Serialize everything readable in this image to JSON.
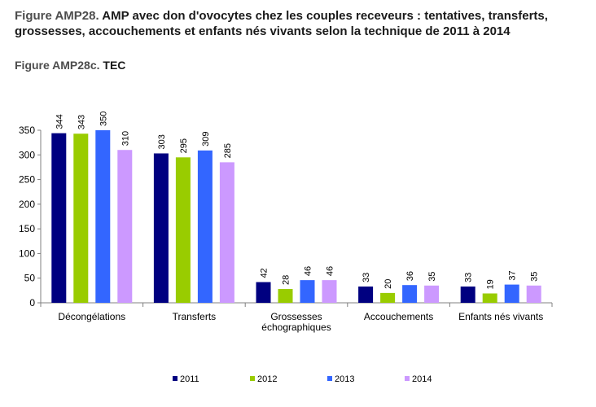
{
  "header": {
    "title_prefix": "Figure AMP28.",
    "title_text": "AMP avec don d'ovocytes chez les couples receveurs : tentatives, transferts, grossesses, accouchements et enfants nés vivants selon la technique de 2011 à 2014",
    "subtitle_prefix": "Figure AMP28c.",
    "subtitle_text": "TEC"
  },
  "chart_data": {
    "type": "bar",
    "title": "",
    "xlabel": "",
    "ylabel": "",
    "ylim": [
      0,
      350
    ],
    "yticks": [
      0,
      50,
      100,
      150,
      200,
      250,
      300,
      350
    ],
    "grid": false,
    "legend_position": "bottom",
    "categories": [
      [
        "Décongélations"
      ],
      [
        "Transferts"
      ],
      [
        "Grossesses",
        "échographiques"
      ],
      [
        "Accouchements"
      ],
      [
        "Enfants nés vivants"
      ]
    ],
    "series": [
      {
        "name": "2011",
        "color": "#000080",
        "values": [
          344,
          303,
          42,
          33,
          33
        ]
      },
      {
        "name": "2012",
        "color": "#99cc00",
        "values": [
          343,
          295,
          28,
          20,
          19
        ]
      },
      {
        "name": "2013",
        "color": "#3366ff",
        "values": [
          350,
          309,
          46,
          36,
          37
        ]
      },
      {
        "name": "2014",
        "color": "#cc99ff",
        "values": [
          310,
          285,
          46,
          35,
          35
        ]
      }
    ]
  }
}
